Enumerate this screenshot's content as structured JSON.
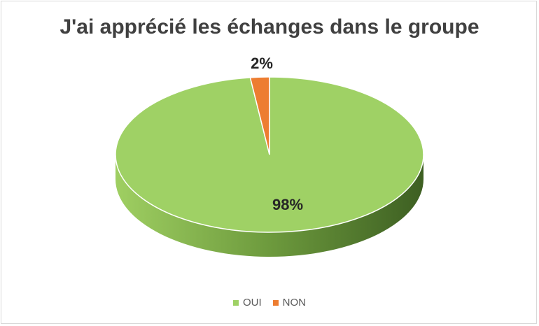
{
  "chart_data": {
    "type": "pie",
    "title": "J'ai apprécié les échanges dans le groupe",
    "categories": [
      "OUI",
      "NON"
    ],
    "values": [
      98,
      2
    ],
    "data_labels": [
      "98%",
      "2%"
    ],
    "colors": [
      "#9fd165",
      "#ed7d31"
    ],
    "legend_position": "bottom",
    "style": "3d"
  }
}
